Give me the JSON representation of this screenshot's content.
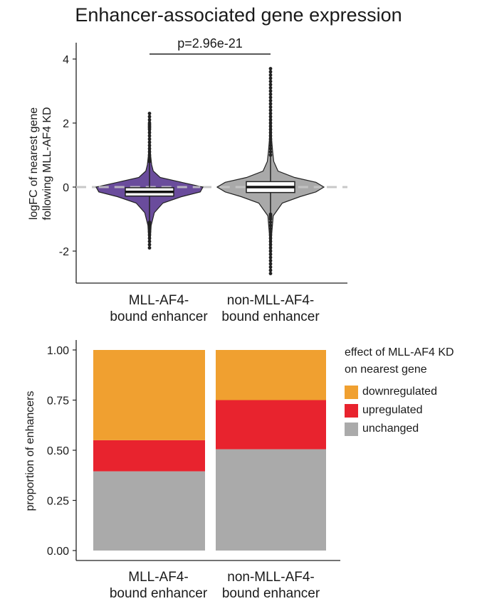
{
  "title": "Enhancer-associated gene expression",
  "chart_data": [
    {
      "type": "violin",
      "ylabel": [
        "logFC of nearest gene",
        "following MLL-AF4 KD"
      ],
      "ylim": [
        -3,
        4
      ],
      "yticks": [
        -2,
        0,
        2,
        4
      ],
      "reference_line_y": 0,
      "significance": {
        "text": "p=2.96e-21",
        "between": [
          0,
          1
        ]
      },
      "categories": [
        [
          "MLL-AF4-",
          "bound enhancer"
        ],
        [
          "non-MLL-AF4-",
          "bound enhancer"
        ]
      ],
      "groups": [
        {
          "color": "#6a4c9c",
          "median": -0.15,
          "q1": -0.28,
          "q3": -0.02,
          "min": -1.9,
          "max": 2.3,
          "profile": [
            [
              -1.9,
              0.006
            ],
            [
              -1.2,
              0.03
            ],
            [
              -0.8,
              0.09
            ],
            [
              -0.5,
              0.25
            ],
            [
              -0.3,
              0.6
            ],
            [
              -0.15,
              0.95
            ],
            [
              0,
              1.0
            ],
            [
              0.15,
              0.6
            ],
            [
              0.3,
              0.2
            ],
            [
              0.5,
              0.07
            ],
            [
              0.7,
              0.04
            ],
            [
              1.0,
              0.02
            ],
            [
              1.5,
              0.012
            ],
            [
              1.9,
              0.02
            ],
            [
              2.3,
              0.006
            ]
          ],
          "outliers": [
            -1.9,
            -1.8,
            -1.7,
            -1.6,
            -1.5,
            -1.4,
            -1.3,
            -1.25,
            -1.2,
            -1.15,
            -1.1,
            0.8,
            0.85,
            0.9,
            1.0,
            1.1,
            1.2,
            1.3,
            1.4,
            1.5,
            1.6,
            1.7,
            1.8,
            1.85,
            1.9,
            1.95,
            2.0,
            2.1,
            2.2,
            2.3
          ]
        },
        {
          "color": "#a9a9a9",
          "median": 0.0,
          "q1": -0.17,
          "q3": 0.17,
          "min": -2.7,
          "max": 3.7,
          "profile": [
            [
              -2.7,
              0.006
            ],
            [
              -1.5,
              0.02
            ],
            [
              -0.9,
              0.05
            ],
            [
              -0.5,
              0.22
            ],
            [
              -0.3,
              0.55
            ],
            [
              -0.15,
              0.85
            ],
            [
              0,
              1.0
            ],
            [
              0.15,
              0.85
            ],
            [
              0.3,
              0.45
            ],
            [
              0.5,
              0.14
            ],
            [
              0.8,
              0.06
            ],
            [
              1.1,
              0.04
            ],
            [
              1.5,
              0.02
            ],
            [
              2.5,
              0.012
            ],
            [
              3.7,
              0.006
            ]
          ],
          "outliers": [
            -2.7,
            -2.6,
            -2.5,
            -2.4,
            -2.3,
            -2.2,
            -2.1,
            -2.0,
            -1.9,
            -1.8,
            -1.7,
            -1.6,
            -1.5,
            -1.4,
            -1.3,
            -1.2,
            -1.1,
            -1.0,
            -0.95,
            -0.9,
            -0.85,
            1.0,
            1.1,
            1.2,
            1.3,
            1.4,
            1.5,
            1.6,
            1.7,
            1.8,
            1.9,
            2.0,
            2.1,
            2.2,
            2.3,
            2.4,
            2.5,
            2.6,
            2.7,
            2.8,
            2.9,
            3.0,
            3.1,
            3.2,
            3.3,
            3.4,
            3.5,
            3.6,
            3.7
          ]
        }
      ]
    },
    {
      "type": "stacked_bar",
      "ylabel": "proportion of enhancers",
      "ylim": [
        0,
        1
      ],
      "yticks": [
        "0.00",
        "0.25",
        "0.50",
        "0.75",
        "1.00"
      ],
      "categories": [
        [
          "MLL-AF4-",
          "bound enhancer"
        ],
        [
          "non-MLL-AF4-",
          "bound enhancer"
        ]
      ],
      "series": [
        {
          "name": "unchanged",
          "color": "#aaaaaa",
          "values": [
            0.395,
            0.505
          ]
        },
        {
          "name": "upregulated",
          "color": "#e8232e",
          "values": [
            0.155,
            0.245
          ]
        },
        {
          "name": "downregulated",
          "color": "#f0a030",
          "values": [
            0.45,
            0.25
          ]
        }
      ],
      "legend": {
        "title": [
          "effect of MLL-AF4 KD",
          "on nearest gene"
        ],
        "placement": "right",
        "items": [
          {
            "name": "downregulated",
            "color": "#f0a030"
          },
          {
            "name": "upregulated",
            "color": "#e8232e"
          },
          {
            "name": "unchanged",
            "color": "#aaaaaa"
          }
        ]
      }
    }
  ]
}
